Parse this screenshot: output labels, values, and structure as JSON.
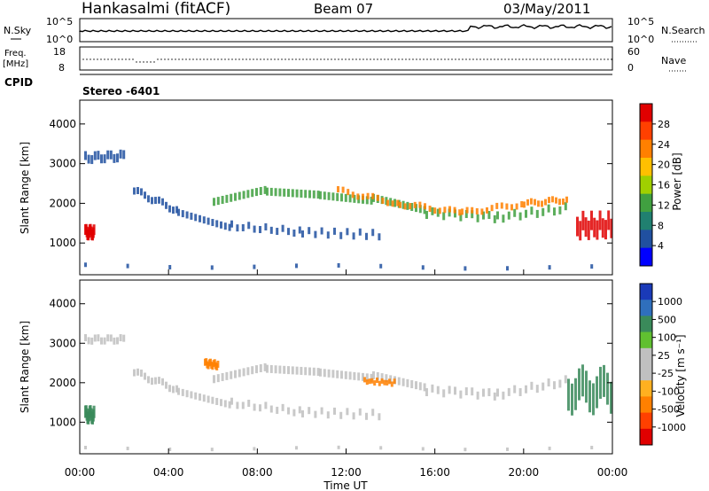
{
  "header": {
    "station": "Hankasalmi (fitACF)",
    "beam": "Beam 07",
    "date": "03/May/2011"
  },
  "strip_nsky": {
    "left_label": "N.Sky",
    "ticks_left": [
      "10^5",
      "10^0"
    ],
    "ticks_right": [
      "10^5",
      "10^0"
    ],
    "right_label": "N.Search"
  },
  "strip_freq": {
    "left_label_line1": "Freq.",
    "left_label_line2": "[MHz]",
    "ticks_left": [
      "18",
      "8"
    ],
    "ticks_right": [
      "60",
      "0"
    ],
    "right_label": "Nave"
  },
  "cpid": {
    "label": "CPID",
    "value": "Stereo -6401"
  },
  "chart_data": [
    {
      "type": "heatmap",
      "name": "Power panel",
      "ylabel": "Slant Range [km]",
      "xlabel": "Time UT",
      "ylim": [
        200,
        4600
      ],
      "yticks": [
        "1000",
        "2000",
        "3000",
        "4000"
      ],
      "xticks": [
        "00:00",
        "04:00",
        "08:00",
        "12:00",
        "16:00",
        "20:00",
        "00:00"
      ],
      "colorbar": {
        "label": "Power [dB]",
        "ticks": [
          "28",
          "24",
          "20",
          "16",
          "12",
          "8",
          "4"
        ],
        "colors": [
          "#e00000",
          "#ff4000",
          "#ff8000",
          "#ffc000",
          "#a0d000",
          "#40a040",
          "#208070",
          "#2050a0",
          "#0000ff"
        ]
      }
    },
    {
      "type": "heatmap",
      "name": "Velocity panel",
      "ylabel": "Slant Range [km]",
      "xlabel": "Time UT",
      "ylim": [
        200,
        4600
      ],
      "yticks": [
        "1000",
        "2000",
        "3000",
        "4000"
      ],
      "xticks": [
        "00:00",
        "04:00",
        "08:00",
        "12:00",
        "16:00",
        "20:00",
        "00:00"
      ],
      "colorbar": {
        "label": "Velocity [m s⁻¹]",
        "ticks": [
          "1000",
          "500",
          "100",
          "25",
          "-25",
          "-100",
          "-500",
          "-1000"
        ],
        "colors": [
          "#1a3ab8",
          "#2f6fbd",
          "#3a8a5a",
          "#60c030",
          "#c0c0c0",
          "#c0c0c0",
          "#ffb020",
          "#ff8000",
          "#ff4000",
          "#e00000"
        ]
      }
    }
  ],
  "axis_title_x": "Time UT"
}
